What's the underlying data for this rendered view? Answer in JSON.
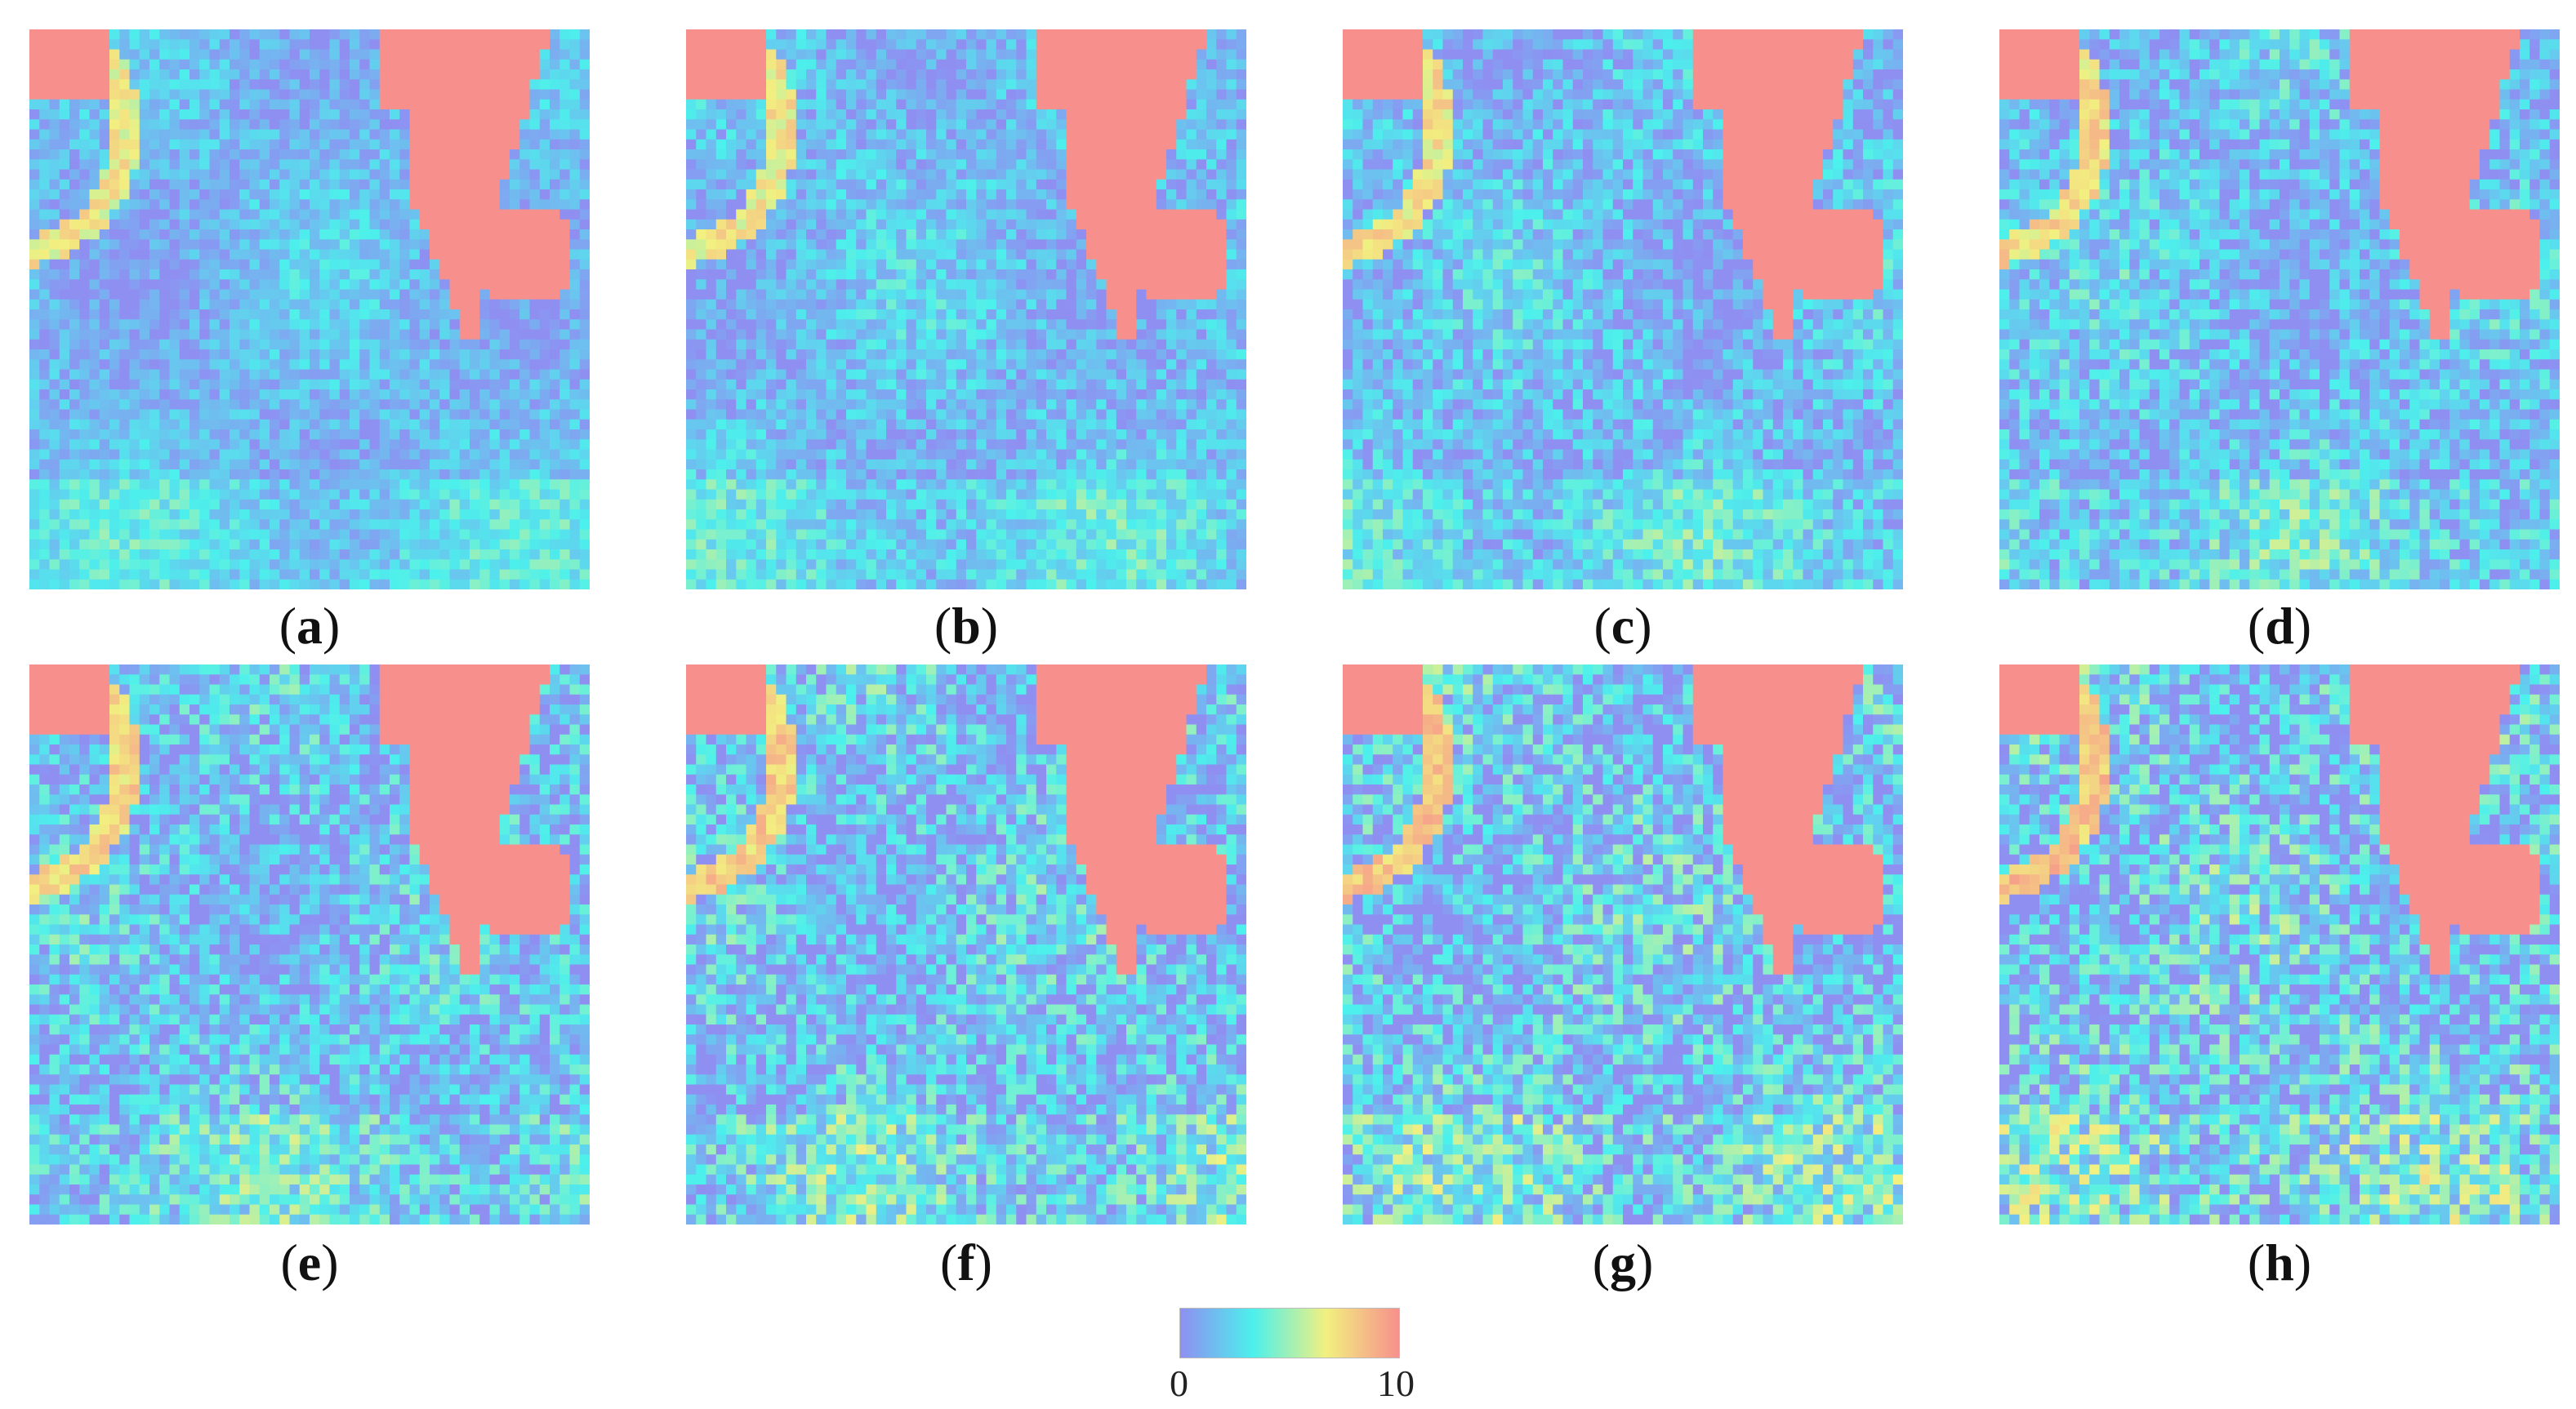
{
  "panels": [
    {
      "id": "a",
      "label": "a",
      "variant": 0
    },
    {
      "id": "b",
      "label": "b",
      "variant": 1
    },
    {
      "id": "c",
      "label": "c",
      "variant": 2
    },
    {
      "id": "d",
      "label": "d",
      "variant": 3
    },
    {
      "id": "e",
      "label": "e",
      "variant": 4
    },
    {
      "id": "f",
      "label": "f",
      "variant": 5
    },
    {
      "id": "g",
      "label": "g",
      "variant": 6
    },
    {
      "id": "h",
      "label": "h",
      "variant": 7
    }
  ],
  "colorbar": {
    "min_label": "0",
    "max_label": "10",
    "min": 0,
    "max": 10,
    "colors": [
      "#8f8ff2",
      "#4cf0ec",
      "#f2f080",
      "#f7908c"
    ]
  }
}
